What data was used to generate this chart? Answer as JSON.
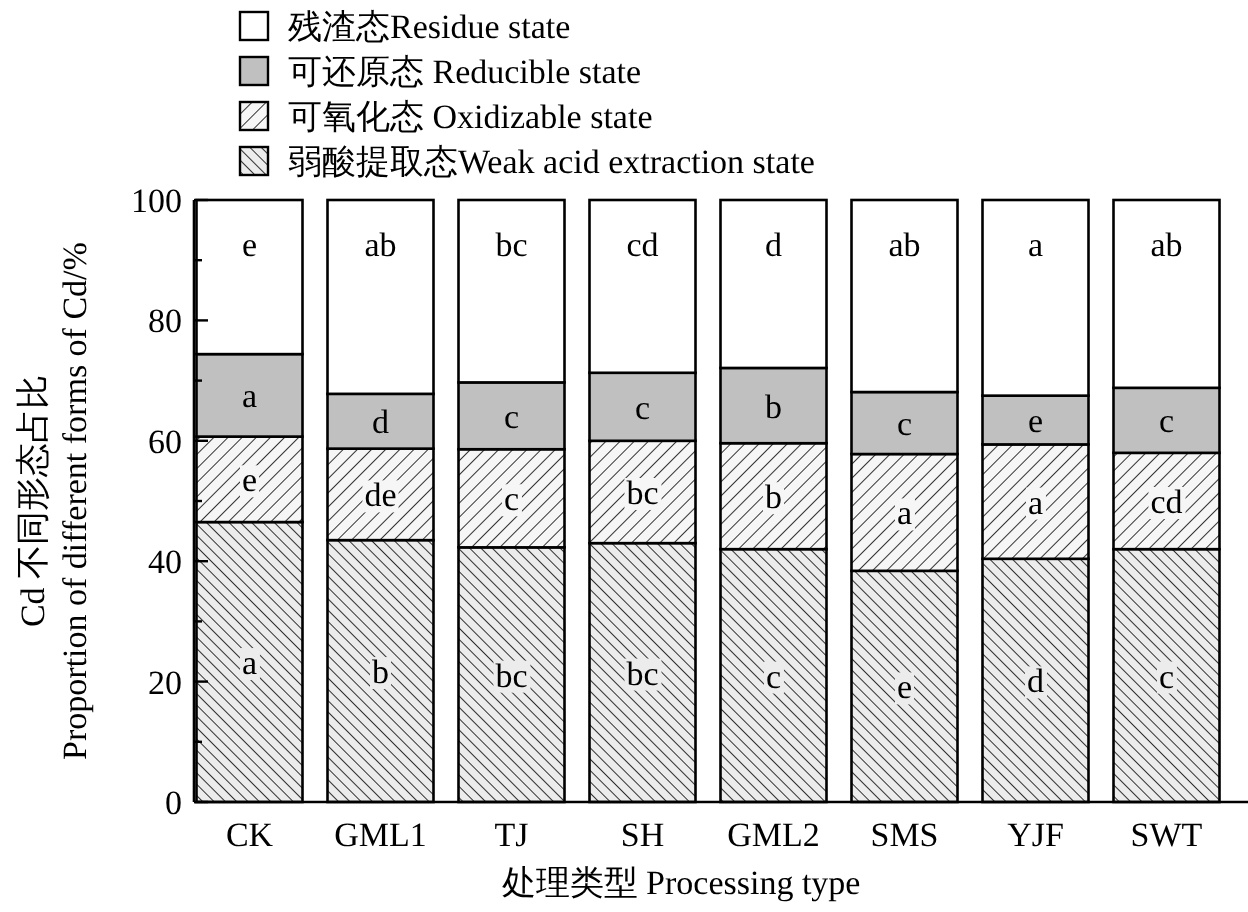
{
  "chart_data": {
    "type": "bar",
    "stacked": true,
    "xlabel": "处理类型 Processing type",
    "ylabel": "Cd 不同形态占比\nProportion of different forms of Cd/%",
    "categories": [
      "CK",
      "GML1",
      "TJ",
      "SH",
      "GML2",
      "SMS",
      "YJF",
      "SWT"
    ],
    "ylim": [
      0,
      100
    ],
    "yticks": [
      0,
      {
        "value": 10,
        "label": null
      },
      20,
      {
        "value": 30,
        "label": null
      },
      40,
      {
        "value": 50,
        "label": null
      },
      60,
      {
        "value": 70,
        "label": null
      },
      80,
      {
        "value": 90,
        "label": null
      },
      100
    ],
    "legend": "top",
    "series": [
      {
        "name": "弱酸提取态Weak acid extraction state",
        "color": "#ececec",
        "values": [
          46.5,
          43.5,
          42.3,
          43.0,
          42.0,
          38.4,
          40.4,
          42.0
        ],
        "value_labels": [
          "a",
          "b",
          "bc",
          "bc",
          "c",
          "e",
          "d",
          "c"
        ]
      },
      {
        "name": "可氧化态 Oxidizable state",
        "color": "#f6f6f6",
        "values": [
          14.2,
          15.2,
          16.3,
          17.0,
          17.6,
          19.4,
          19.0,
          16.0
        ],
        "value_labels": [
          "e",
          "de",
          "c",
          "bc",
          "b",
          "a",
          "a",
          "cd"
        ]
      },
      {
        "name": "可还原态 Reducible state",
        "color": "#c0c0c0",
        "values": [
          13.7,
          9.1,
          11.1,
          11.3,
          12.5,
          10.3,
          8.1,
          10.8
        ],
        "value_labels": [
          "a",
          "d",
          "c",
          "c",
          "b",
          "c",
          "e",
          "c"
        ]
      },
      {
        "name": "残渣态Residue state",
        "color": "#ffffff",
        "values": [
          25.6,
          32.2,
          30.3,
          28.7,
          27.9,
          31.9,
          32.5,
          31.2
        ],
        "value_labels": [
          "e",
          "ab",
          "bc",
          "cd",
          "d",
          "ab",
          "a",
          "ab"
        ]
      }
    ]
  }
}
